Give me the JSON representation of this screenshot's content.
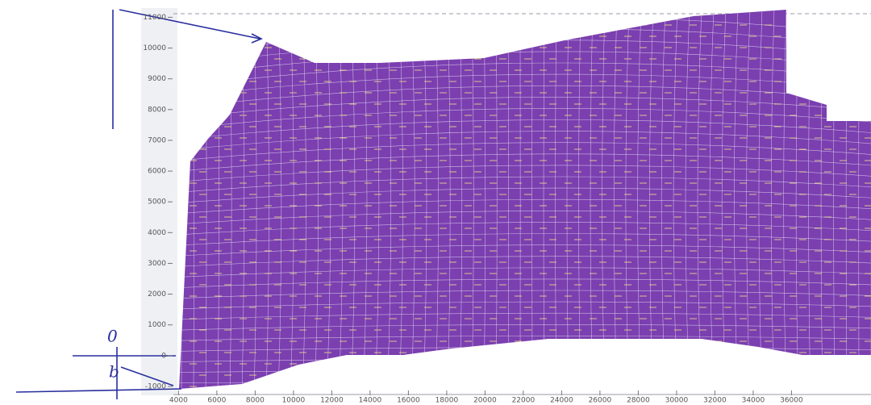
{
  "chart_data": {
    "type": "mesh",
    "color": "#7b3fb0",
    "xlim": [
      3100,
      40150
    ],
    "ylim": [
      -1290,
      11300
    ],
    "xticks": [
      4000,
      6000,
      8000,
      10000,
      12000,
      14000,
      16000,
      18000,
      20000,
      22000,
      24000,
      26000,
      28000,
      30000,
      32000,
      34000,
      36000
    ],
    "yticks": [
      -1000,
      0,
      1000,
      2000,
      3000,
      4000,
      5000,
      6000,
      7000,
      8000,
      9000,
      10000,
      11000
    ],
    "annotations": [
      "0",
      "b"
    ]
  }
}
